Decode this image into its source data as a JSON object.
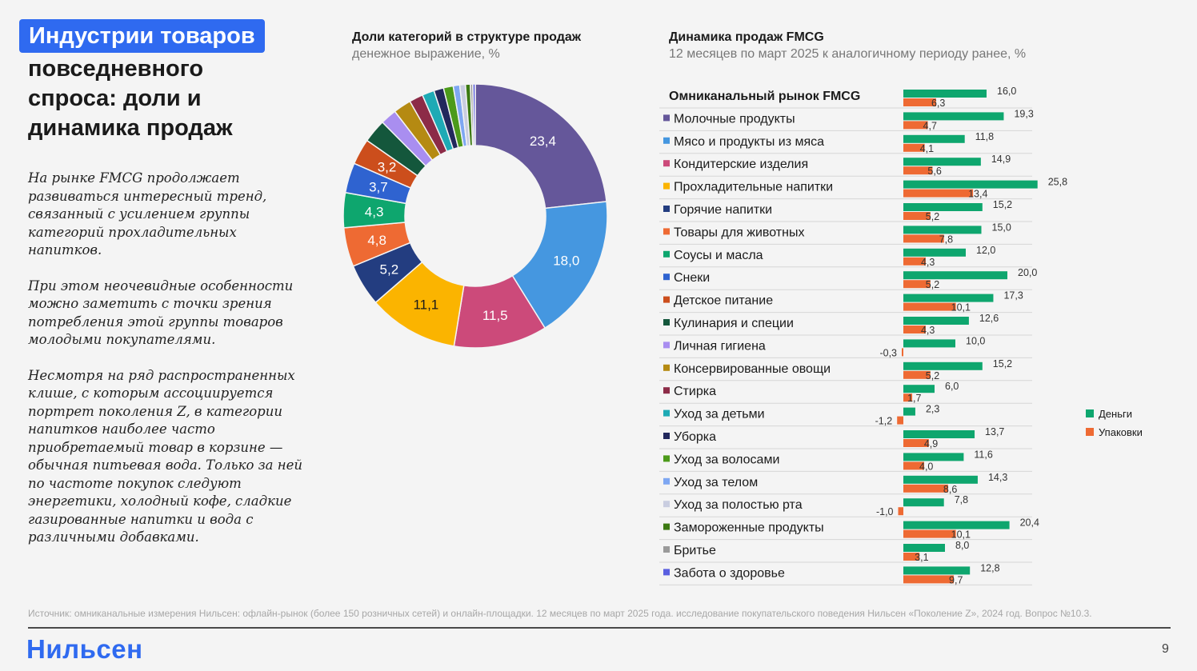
{
  "page": {
    "title_highlight": "Индустрии товаров",
    "title_rest": "повседневного\nспроса: доли и\nдинамика продаж",
    "paragraphs": [
      "На рынке FMCG продолжает развиваться интересный тренд, связанный с усилением группы категорий прохладительных напитков.",
      "При этом неочевидные особенности можно заметить с точки зрения потребления этой группы товаров молодыми покупателями.",
      "Несмотря на ряд распространенных клише, с которым ассоциируется портрет поколения Z, в категории напитков наиболее часто приобретаемый товар в корзине — обычная питьевая вода. Только за ней по частоте покупок следуют энергетики, холодный кофе, сладкие газированные напитки и вода с различными добавками."
    ],
    "source": "Источник: омниканальные измерения Нильсен: офлайн-рынок (более 150 розничных сетей) и онлайн-площадки. 12 месяцев по март 2025 года. исследование покупательского поведения Нильсен «Поколение Z», 2024 год. Вопрос №10.3.",
    "logo": "Нильсен",
    "page_number": "9"
  },
  "chart_data": [
    {
      "type": "pie",
      "title": "Доли категорий в структуре продаж",
      "subtitle": "денежное выражение, %",
      "slices": [
        {
          "category": "Молочные продукты",
          "value": 23.4,
          "label": "23,4",
          "color": "#65579a"
        },
        {
          "category": "Мясо и продукты из мяса",
          "value": 18.0,
          "label": "18,0",
          "color": "#4597e0"
        },
        {
          "category": "Кондитерские изделия",
          "value": 11.5,
          "label": "11,5",
          "color": "#cc4a7a"
        },
        {
          "category": "Прохладительные напитки",
          "value": 11.1,
          "label": "11,1",
          "color": "#fbb400"
        },
        {
          "category": "Горячие напитки",
          "value": 5.2,
          "label": "5,2",
          "color": "#233d80"
        },
        {
          "category": "Товары для животных",
          "value": 4.8,
          "label": "4,8",
          "color": "#ee6a33"
        },
        {
          "category": "Соусы и масла",
          "value": 4.3,
          "label": "4,3",
          "color": "#0ea66e"
        },
        {
          "category": "Снеки",
          "value": 3.7,
          "label": "3,7",
          "color": "#2f63d0"
        },
        {
          "category": "Детское питание",
          "value": 3.2,
          "label": "3,2",
          "color": "#cc4e1c"
        },
        {
          "category": "Кулинария и специи",
          "value": 2.9,
          "label": "",
          "color": "#14573c"
        },
        {
          "category": "Личная гигиена",
          "value": 2.0,
          "label": "",
          "color": "#a98ef0"
        },
        {
          "category": "Консервированные овощи",
          "value": 2.2,
          "label": "",
          "color": "#b58a12"
        },
        {
          "category": "Стирка",
          "value": 1.7,
          "label": "",
          "color": "#8c2b47"
        },
        {
          "category": "Уход за детьми",
          "value": 1.5,
          "label": "",
          "color": "#1eaab5"
        },
        {
          "category": "Уборка",
          "value": 1.2,
          "label": "",
          "color": "#22285c"
        },
        {
          "category": "Уход за волосами",
          "value": 1.2,
          "label": "",
          "color": "#4c9a1a"
        },
        {
          "category": "Уход за телом",
          "value": 0.8,
          "label": "",
          "color": "#7ea7f2"
        },
        {
          "category": "Уход за полостью рта",
          "value": 0.7,
          "label": "",
          "color": "#c9cde0"
        },
        {
          "category": "Замороженные продукты",
          "value": 0.6,
          "label": "",
          "color": "#3c7a12"
        },
        {
          "category": "Бритье",
          "value": 0.3,
          "label": "",
          "color": "#9a9a9a"
        },
        {
          "category": "Забота о здоровье",
          "value": 0.3,
          "label": "",
          "color": "#5a5fe0"
        }
      ]
    },
    {
      "type": "bar",
      "orientation": "horizontal",
      "title": "Динамика продаж FMCG",
      "subtitle": "12 месяцев по март 2025 к аналогичному периоду ранее, %",
      "categories": [
        "Омниканальный рынок FMCG",
        "Молочные продукты",
        "Мясо и продукты из мяса",
        "Кондитерские изделия",
        "Прохладительные напитки",
        "Горячие напитки",
        "Товары для животных",
        "Соусы и масла",
        "Снеки",
        "Детское питание",
        "Кулинария и специи",
        "Личная гигиена",
        "Консервированные овощи",
        "Стирка",
        "Уход за детьми",
        "Уборка",
        "Уход за волосами",
        "Уход за телом",
        "Уход за полостью рта",
        "Замороженные продукты",
        "Бритье",
        "Забота о здоровье"
      ],
      "category_marker_colors": [
        "",
        "#65579a",
        "#4597e0",
        "#cc4a7a",
        "#fbb400",
        "#233d80",
        "#ee6a33",
        "#0ea66e",
        "#2f63d0",
        "#cc4e1c",
        "#14573c",
        "#a98ef0",
        "#b58a12",
        "#8c2b47",
        "#1eaab5",
        "#22285c",
        "#4c9a1a",
        "#7ea7f2",
        "#c9cde0",
        "#3c7a12",
        "#9a9a9a",
        "#5a5fe0"
      ],
      "series": [
        {
          "name": "Деньги",
          "color": "#0ea66e",
          "values": [
            16.0,
            19.3,
            11.8,
            14.9,
            25.8,
            15.2,
            15.0,
            12.0,
            20.0,
            17.3,
            12.6,
            10.0,
            15.2,
            6.0,
            2.3,
            13.7,
            11.6,
            14.3,
            7.8,
            20.4,
            8.0,
            12.8
          ],
          "labels": [
            "16,0",
            "19,3",
            "11,8",
            "14,9",
            "25,8",
            "15,2",
            "15,0",
            "12,0",
            "20,0",
            "17,3",
            "12,6",
            "10,0",
            "15,2",
            "6,0",
            "2,3",
            "13,7",
            "11,6",
            "14,3",
            "7,8",
            "20,4",
            "8,0",
            "12,8"
          ]
        },
        {
          "name": "Упаковки",
          "color": "#ee6a33",
          "values": [
            6.3,
            4.7,
            4.1,
            5.6,
            13.4,
            5.2,
            7.8,
            4.3,
            5.2,
            10.1,
            4.3,
            -0.3,
            5.2,
            1.7,
            -1.2,
            4.9,
            4.0,
            8.6,
            -1.0,
            10.1,
            3.1,
            9.7
          ],
          "labels": [
            "6,3",
            "4,7",
            "4,1",
            "5,6",
            "13,4",
            "5,2",
            "7,8",
            "4,3",
            "5,2",
            "10,1",
            "4,3",
            "-0,3",
            "5,2",
            "1,7",
            "-1,2",
            "4,9",
            "4,0",
            "8,6",
            "-1,0",
            "10,1",
            "3,1",
            "9,7"
          ]
        }
      ],
      "legend_position": "right"
    }
  ]
}
